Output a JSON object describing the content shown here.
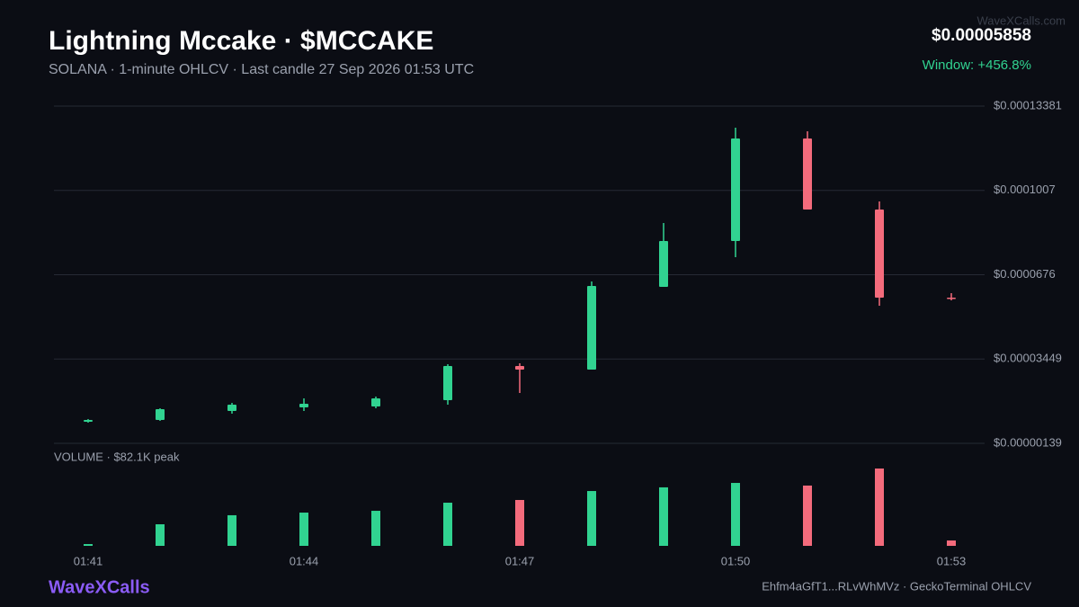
{
  "chart_data": {
    "type": "candlestick",
    "title": "Lightning Mccake · $MCCAKE",
    "subtitle": "SOLANA · 1-minute OHLCV · Last candle 27 Sep 2026 01:53 UTC",
    "price": "$0.00005858",
    "change": "Window: +456.8%",
    "watermark": "WaveXCalls.com",
    "brand": "WaveXCalls",
    "footer": "Ehfm4aGfT1...RLvWhMVz · GeckoTerminal OHLCV",
    "volume_label": "VOLUME · $82.1K peak",
    "categories": [
      "01:41",
      null,
      null,
      "01:44",
      null,
      null,
      "01:47",
      null,
      null,
      "01:50",
      null,
      null,
      "01:53"
    ],
    "open": [
      9.86e-06,
      1.057e-05,
      1.41e-05,
      1.551e-05,
      1.587e-05,
      1.834e-05,
      3.176e-05,
      3.035e-05,
      6.283e-05,
      8.084e-05,
      0.0001211,
      9.32e-05,
      5.86e-05
    ],
    "high": [
      1.092e-05,
      1.516e-05,
      1.728e-05,
      1.905e-05,
      1.975e-05,
      3.246e-05,
      3.282e-05,
      6.495e-05,
      8.79e-05,
      0.00012534,
      0.00012392,
      9.638e-05,
      6.036e-05
    ],
    "low": [
      9.51e-06,
      1.022e-05,
      1.304e-05,
      1.41e-05,
      1.516e-05,
      1.657e-05,
      2.116e-05,
      3.035e-05,
      6.283e-05,
      7.449e-05,
      9.32e-05,
      5.542e-05,
      5.754e-05
    ],
    "close": [
      1.057e-05,
      1.481e-05,
      1.657e-05,
      1.693e-05,
      1.905e-05,
      3.176e-05,
      3.035e-05,
      6.319e-05,
      8.084e-05,
      0.0001211,
      9.32e-05,
      5.86e-05,
      5.858e-05
    ],
    "volume": [
      1900,
      22900,
      32500,
      35300,
      37200,
      45800,
      48700,
      58200,
      62100,
      66800,
      64000,
      82100,
      5700
    ],
    "ylim": [
      1.39e-06,
      0.00013381
    ],
    "yticks": [
      {
        "value": 1.39e-06,
        "label": "$0.00000139"
      },
      {
        "value": 3.449e-05,
        "label": "$0.00003449"
      },
      {
        "value": 6.76e-05,
        "label": "$0.0000676"
      },
      {
        "value": 0.0001007,
        "label": "$0.0001007"
      },
      {
        "value": 0.00013381,
        "label": "$0.00013381"
      }
    ],
    "up_color": "#31d391",
    "down_color": "#f46b7c",
    "grid": true
  }
}
